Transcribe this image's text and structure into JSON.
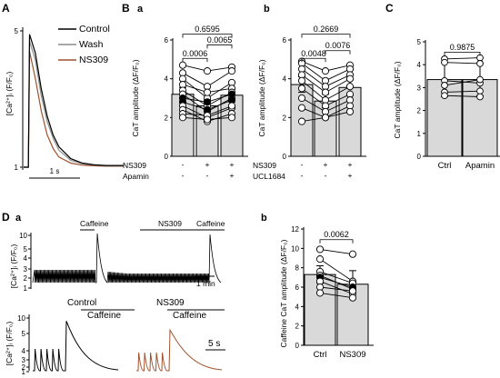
{
  "panel_labels": {
    "A": "A",
    "B": "B",
    "B_a": "a",
    "B_b": "b",
    "C": "C",
    "D": "D",
    "D_a": "a",
    "D_b": "b"
  },
  "colors": {
    "control": "#000000",
    "wash": "#8c8c8c",
    "ns309": "#a0522d",
    "bar_fill": "#d9d9d9",
    "open_marker": "#ffffff"
  },
  "chart_data": [
    {
      "id": "A",
      "type": "line",
      "ylabel": "[Ca²⁺]ᵢ (F/F₀)",
      "yticks": [
        "5",
        "1"
      ],
      "ylim": [
        1,
        5.2
      ],
      "xlim": [
        0,
        1.7
      ],
      "scalebar": "1 s",
      "legend_position": "top-right",
      "series": [
        {
          "name": "Control",
          "color": "#000000",
          "peak": 4.9,
          "x": [
            0,
            0.05,
            0.08,
            0.1,
            0.2,
            0.3,
            0.4,
            0.5,
            0.6,
            0.8,
            1.0,
            1.2,
            1.4,
            1.7
          ],
          "y": [
            1.0,
            1.0,
            1.0,
            4.9,
            4.35,
            3.3,
            2.5,
            1.95,
            1.6,
            1.25,
            1.12,
            1.07,
            1.05,
            1.05
          ]
        },
        {
          "name": "Wash",
          "color": "#8c8c8c",
          "peak": 4.7,
          "x": [
            0,
            0.05,
            0.08,
            0.1,
            0.2,
            0.3,
            0.4,
            0.5,
            0.6,
            0.8,
            1.0,
            1.2,
            1.4,
            1.7
          ],
          "y": [
            1.0,
            1.0,
            1.0,
            4.7,
            4.15,
            3.1,
            2.35,
            1.85,
            1.5,
            1.2,
            1.1,
            1.06,
            1.04,
            1.04
          ]
        },
        {
          "name": "NS309",
          "color": "#a0522d",
          "peak": 4.4,
          "x": [
            0,
            0.05,
            0.08,
            0.1,
            0.2,
            0.3,
            0.4,
            0.5,
            0.6,
            0.8,
            1.0,
            1.2,
            1.4,
            1.7
          ],
          "y": [
            1.0,
            1.0,
            1.0,
            4.4,
            3.6,
            2.65,
            1.95,
            1.55,
            1.3,
            1.12,
            1.06,
            1.04,
            1.03,
            1.03
          ]
        }
      ]
    },
    {
      "id": "B_a",
      "type": "bar",
      "ylabel": "CaT amplitude (ΔF/F₀)",
      "ylim": [
        0,
        6
      ],
      "yticks": [
        "0",
        "2",
        "4",
        "6"
      ],
      "row_labels": [
        "NS309",
        "Apamin"
      ],
      "conditions": [
        [
          "-",
          "-"
        ],
        [
          "+",
          "-"
        ],
        [
          "+",
          "+"
        ]
      ],
      "values": [
        3.2,
        2.6,
        3.15
      ],
      "errors": [
        0.35,
        0.3,
        0.35
      ],
      "comparisons": [
        {
          "from": 0,
          "to": 2,
          "p": "0.6595",
          "y": 6.3
        },
        {
          "from": 1,
          "to": 2,
          "p": "0.0065",
          "y": 5.75
        },
        {
          "from": 0,
          "to": 1,
          "p": "0.0006",
          "y": 5.05
        }
      ],
      "paired_points": [
        {
          "values": [
            4.7,
            4.4,
            4.6
          ],
          "filled": false
        },
        {
          "values": [
            4.3,
            3.6,
            4.4
          ],
          "filled": false
        },
        {
          "values": [
            4.0,
            3.0,
            3.8
          ],
          "filled": false
        },
        {
          "values": [
            3.7,
            3.3,
            3.5
          ],
          "filled": false
        },
        {
          "values": [
            3.4,
            2.6,
            3.3
          ],
          "filled": false
        },
        {
          "values": [
            3.2,
            2.3,
            3.0
          ],
          "filled": false
        },
        {
          "values": [
            3.0,
            2.8,
            3.2
          ],
          "filled": true
        },
        {
          "values": [
            2.8,
            2.4,
            2.9
          ],
          "filled": true
        },
        {
          "values": [
            2.6,
            2.0,
            2.5
          ],
          "filled": false
        },
        {
          "values": [
            2.4,
            1.8,
            2.2
          ],
          "filled": false
        },
        {
          "values": [
            2.2,
            2.1,
            2.6
          ],
          "filled": false
        },
        {
          "values": [
            2.0,
            1.9,
            2.0
          ],
          "filled": false
        }
      ]
    },
    {
      "id": "B_b",
      "type": "bar",
      "ylabel": "CaT amplitude (ΔF/F₀)",
      "ylim": [
        0,
        6
      ],
      "yticks": [
        "0",
        "2",
        "4",
        "6"
      ],
      "row_labels": [
        "NS309",
        "UCL1684"
      ],
      "conditions": [
        [
          "-",
          "-"
        ],
        [
          "+",
          "-"
        ],
        [
          "+",
          "+"
        ]
      ],
      "values": [
        3.7,
        2.85,
        3.55
      ],
      "errors": [
        0.4,
        0.35,
        0.4
      ],
      "comparisons": [
        {
          "from": 0,
          "to": 2,
          "p": "0.2669",
          "y": 6.3
        },
        {
          "from": 1,
          "to": 2,
          "p": "0.0076",
          "y": 5.45
        },
        {
          "from": 0,
          "to": 1,
          "p": "0.0048",
          "y": 5.05
        }
      ],
      "paired_points": [
        {
          "values": [
            4.9,
            4.4,
            4.7
          ],
          "filled": false
        },
        {
          "values": [
            4.8,
            3.9,
            4.5
          ],
          "filled": false
        },
        {
          "values": [
            4.5,
            3.6,
            4.2
          ],
          "filled": false
        },
        {
          "values": [
            4.2,
            3.3,
            4.0
          ],
          "filled": false
        },
        {
          "values": [
            3.9,
            2.9,
            3.6
          ],
          "filled": false
        },
        {
          "values": [
            3.5,
            2.6,
            3.2
          ],
          "filled": false
        },
        {
          "values": [
            3.0,
            2.3,
            2.9
          ],
          "filled": false
        },
        {
          "values": [
            2.5,
            2.0,
            2.6
          ],
          "filled": false
        },
        {
          "values": [
            1.8,
            2.0,
            2.3
          ],
          "filled": false
        }
      ]
    },
    {
      "id": "C",
      "type": "bar",
      "ylabel": "CaT amplitude (ΔF/F₀)",
      "ylim": [
        0,
        5
      ],
      "yticks": [
        "0",
        "1",
        "2",
        "3",
        "4",
        "5"
      ],
      "categories": [
        "Ctrl",
        "Apamin"
      ],
      "values": [
        3.35,
        3.35
      ],
      "errors": [
        0.75,
        0.7
      ],
      "comparisons": [
        {
          "from": 0,
          "to": 1,
          "p": "0.9875",
          "y": 4.55
        }
      ],
      "paired_points": [
        {
          "values": [
            4.25,
            4.3
          ],
          "filled": false
        },
        {
          "values": [
            4.1,
            4.05
          ],
          "filled": false
        },
        {
          "values": [
            3.3,
            3.2
          ],
          "filled": false
        },
        {
          "values": [
            3.1,
            3.35
          ],
          "filled": false
        },
        {
          "values": [
            2.8,
            2.85
          ],
          "filled": false
        },
        {
          "values": [
            2.65,
            2.6
          ],
          "filled": false
        }
      ]
    },
    {
      "id": "D_a_top",
      "type": "line",
      "ylabel": "[Ca²⁺]ᵢ (F/F₀)",
      "yticks": [
        "10",
        "5",
        "4",
        "3",
        "2",
        "1"
      ],
      "ylim": [
        1,
        10
      ],
      "annotations": [
        "Caffeine",
        "NS309",
        "Caffeine"
      ],
      "scalebar": "1 min"
    },
    {
      "id": "D_a_bottom",
      "type": "line",
      "ylabel": "[Ca²⁺]ᵢ (F/F₀)",
      "yticks": [
        "10",
        "5",
        "4",
        "3",
        "2",
        "1"
      ],
      "ylim": [
        1,
        10
      ],
      "annotations": [
        "Control",
        "Caffeine",
        "NS309",
        "Caffeine"
      ],
      "scalebar": "5 s",
      "series": [
        {
          "name": "Control",
          "color": "#000000",
          "pacing_peak": 4.6,
          "caffeine_peak": 9.2
        },
        {
          "name": "NS309",
          "color": "#a0522d",
          "pacing_peak": 4.0,
          "caffeine_peak": 7.7
        }
      ]
    },
    {
      "id": "D_b",
      "type": "bar",
      "ylabel": "Caffeine CaT amplitude (ΔF/F₀)",
      "ylim": [
        0,
        12
      ],
      "yticks": [
        "0",
        "2",
        "4",
        "6",
        "8",
        "10",
        "12"
      ],
      "categories": [
        "Ctrl",
        "NS309"
      ],
      "values": [
        7.3,
        6.3
      ],
      "errors": [
        0.9,
        1.4
      ],
      "comparisons": [
        {
          "from": 0,
          "to": 1,
          "p": "0.0062",
          "y": 10.9
        }
      ],
      "paired_points": [
        {
          "values": [
            9.9,
            9.4
          ],
          "filled": false
        },
        {
          "values": [
            8.9,
            6.6
          ],
          "filled": false
        },
        {
          "values": [
            7.6,
            6.4
          ],
          "filled": false
        },
        {
          "values": [
            7.2,
            5.8
          ],
          "filled": false
        },
        {
          "values": [
            7.0,
            6.0
          ],
          "filled": true
        },
        {
          "values": [
            6.6,
            5.3
          ],
          "filled": false
        },
        {
          "values": [
            6.0,
            5.6
          ],
          "filled": false
        },
        {
          "values": [
            5.4,
            4.9
          ],
          "filled": false
        }
      ]
    }
  ]
}
